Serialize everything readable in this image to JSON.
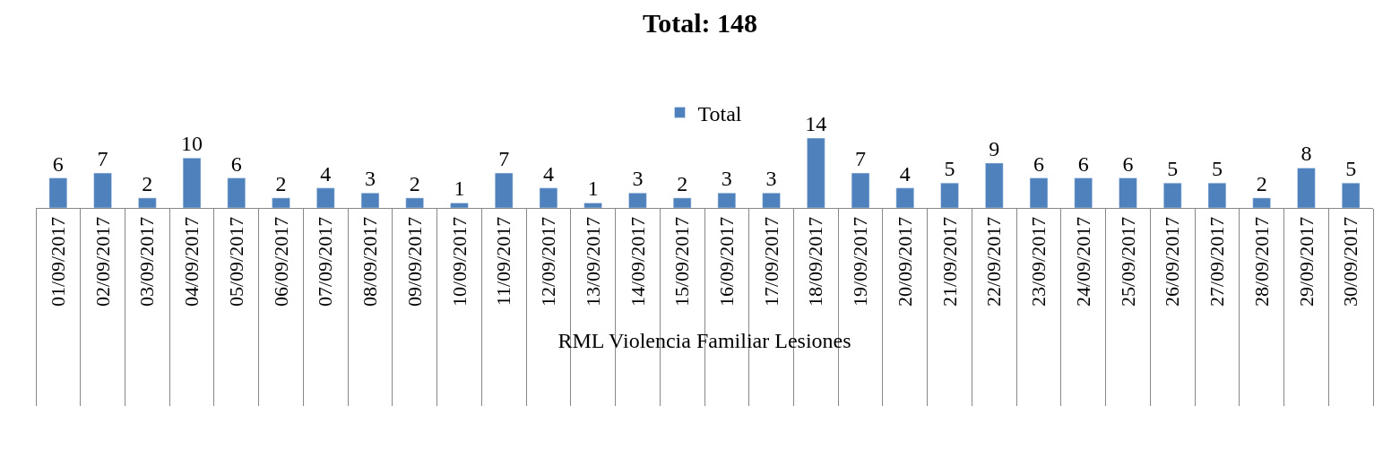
{
  "chart_data": {
    "type": "bar",
    "title": "Total: 148",
    "xlabel": "RML Violencia Familiar Lesiones",
    "categories": [
      "01/09/2017",
      "02/09/2017",
      "03/09/2017",
      "04/09/2017",
      "05/09/2017",
      "06/09/2017",
      "07/09/2017",
      "08/09/2017",
      "09/09/2017",
      "10/09/2017",
      "11/09/2017",
      "12/09/2017",
      "13/09/2017",
      "14/09/2017",
      "15/09/2017",
      "16/09/2017",
      "17/09/2017",
      "18/09/2017",
      "19/09/2017",
      "20/09/2017",
      "21/09/2017",
      "22/09/2017",
      "23/09/2017",
      "24/09/2017",
      "25/09/2017",
      "26/09/2017",
      "27/09/2017",
      "28/09/2017",
      "29/09/2017",
      "30/09/2017"
    ],
    "series": [
      {
        "name": "Total",
        "color": "#4f81bd",
        "values": [
          6,
          7,
          2,
          10,
          6,
          2,
          4,
          3,
          2,
          1,
          7,
          4,
          1,
          3,
          2,
          3,
          3,
          14,
          7,
          4,
          5,
          9,
          6,
          6,
          6,
          5,
          5,
          2,
          8,
          5
        ]
      }
    ],
    "data_labels": true,
    "legend": "top",
    "tick_labels": "x"
  }
}
